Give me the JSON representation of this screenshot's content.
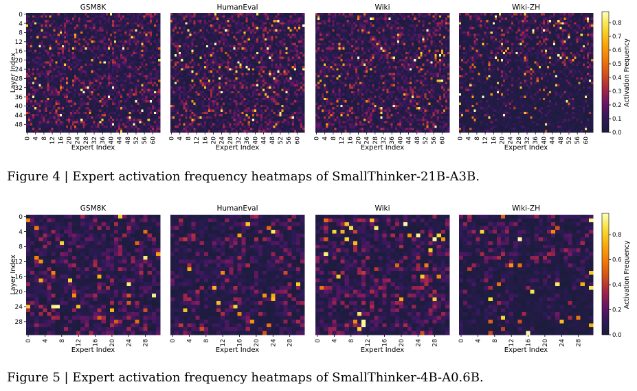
{
  "figures": [
    {
      "caption": "Figure 4 | Expert activation frequency heatmaps of SmallThinker-21B-A3B.",
      "xlabel": "Expert Index",
      "ylabel": "Layer Index",
      "colorbar_label": "Activation Frequency",
      "panels": [
        "GSM8K",
        "HumanEval",
        "Wiki",
        "Wiki-ZH"
      ],
      "x_ticks": [
        "0",
        "4",
        "8",
        "12",
        "16",
        "20",
        "24",
        "28",
        "32",
        "36",
        "40",
        "44",
        "48",
        "52",
        "56",
        "60"
      ],
      "y_ticks": [
        "0",
        "4",
        "8",
        "12",
        "16",
        "20",
        "24",
        "28",
        "32",
        "36",
        "40",
        "44",
        "48"
      ],
      "colorbar_ticks": [
        "0.0",
        "0.1",
        "0.2",
        "0.3",
        "0.4",
        "0.5",
        "0.6",
        "0.7",
        "0.8"
      ]
    },
    {
      "caption": "Figure 5 | Expert activation frequency heatmaps of SmallThinker-4B-A0.6B.",
      "xlabel": "Expert Index",
      "ylabel": "Layer Index",
      "colorbar_label": "Activation Frequency",
      "panels": [
        "GSM8K",
        "HumanEval",
        "Wiki",
        "Wiki-ZH"
      ],
      "x_ticks": [
        "0",
        "4",
        "8",
        "12",
        "16",
        "20",
        "24",
        "28"
      ],
      "y_ticks": [
        "0",
        "4",
        "8",
        "12",
        "16",
        "20",
        "24",
        "28"
      ],
      "colorbar_ticks": [
        "0.0",
        "0.2",
        "0.4",
        "0.6",
        "0.8"
      ]
    }
  ],
  "chart_data": [
    {
      "type": "heatmap",
      "title": "",
      "xlabel": "Expert Index",
      "ylabel": "Layer Index",
      "series": [
        {
          "name": "GSM8K"
        },
        {
          "name": "HumanEval"
        },
        {
          "name": "Wiki"
        },
        {
          "name": "Wiki-ZH"
        }
      ],
      "rows": 52,
      "cols": 64,
      "value_range": [
        0.0,
        0.88
      ],
      "colormap": "inferno-like",
      "colors": {
        "low": "#1b1c3a",
        "mid": "#d2501c",
        "high": "#ffffbe"
      }
    },
    {
      "type": "heatmap",
      "title": "",
      "xlabel": "Expert Index",
      "ylabel": "Layer Index",
      "series": [
        {
          "name": "GSM8K"
        },
        {
          "name": "HumanEval"
        },
        {
          "name": "Wiki"
        },
        {
          "name": "Wiki-ZH"
        }
      ],
      "rows": 32,
      "cols": 32,
      "value_range": [
        0.0,
        0.97
      ],
      "colormap": "inferno-like",
      "colors": {
        "low": "#1b1c3a",
        "mid": "#d2501c",
        "high": "#ffffbe"
      }
    }
  ]
}
